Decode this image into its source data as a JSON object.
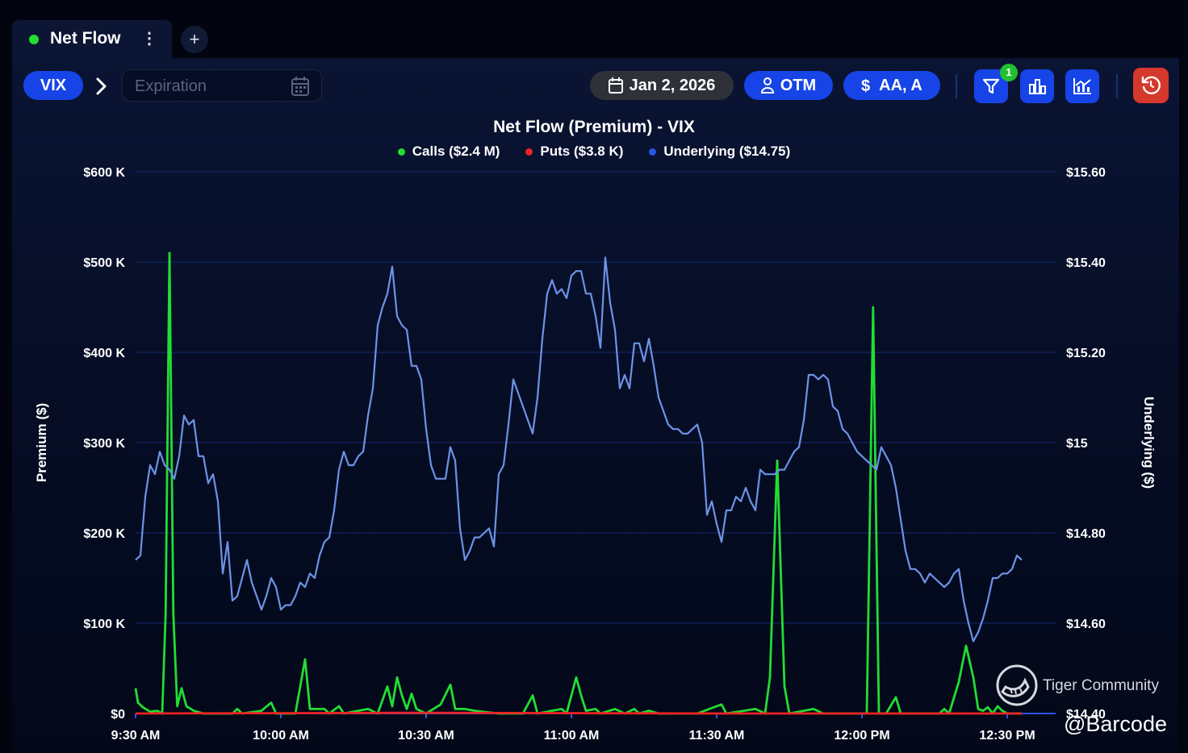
{
  "tab": {
    "label": "Net Flow",
    "menu_glyph": "⋮",
    "add_glyph": "+"
  },
  "toolbar": {
    "ticker": "VIX",
    "expiration_placeholder": "Expiration",
    "date": "Jan 2, 2026",
    "moneyness": "OTM",
    "size_filter": "AA, A",
    "filter_badge": "1",
    "icons": [
      "chevron-right-icon",
      "calendar-icon",
      "person-icon",
      "dollar-icon",
      "filter-icon",
      "bar-chart-icon",
      "line-chart-icon",
      "reset-icon"
    ],
    "colors": {
      "accent": "#1744e6",
      "reset": "#d4392c",
      "badge": "#22c02e",
      "date_pill": "#2e3138"
    }
  },
  "watermark": {
    "text": "Tiger Community",
    "handle": "@Barcode"
  },
  "chart_data": {
    "type": "line",
    "title": "Net Flow (Premium) - VIX",
    "legend": [
      "Calls ($2.4 M)",
      "Puts ($3.8 K)",
      "Underlying ($14.75)"
    ],
    "legend_placement": "top-center",
    "grid": true,
    "xlabel": "",
    "ylabel": "Premium ($)",
    "y2label": "Underlying ($)",
    "x_ticks": [
      "9:30 AM",
      "10:00 AM",
      "10:30 AM",
      "11:00 AM",
      "11:30 AM",
      "12:00 PM",
      "12:30 PM"
    ],
    "x_range_minutes": [
      0,
      190
    ],
    "ylim": [
      0,
      600000
    ],
    "y_tick_labels": [
      "$0",
      "$100 K",
      "$200 K",
      "$300 K",
      "$400 K",
      "$500 K",
      "$600 K"
    ],
    "y2lim": [
      14.4,
      15.6
    ],
    "y2_tick_labels": [
      "$14.40",
      "$14.60",
      "$14.80",
      "$15",
      "$15.20",
      "$15.40",
      "$15.60"
    ],
    "series": [
      {
        "name": "Calls",
        "color": "#22dd33",
        "axis": "left",
        "points": [
          [
            0,
            28000
          ],
          [
            0.5,
            12000
          ],
          [
            1.5,
            7000
          ],
          [
            3,
            2000
          ],
          [
            4.5,
            3000
          ],
          [
            5.5,
            0
          ],
          [
            6.2,
            110000
          ],
          [
            7,
            510000
          ],
          [
            7.8,
            110000
          ],
          [
            8.6,
            8000
          ],
          [
            9.5,
            28000
          ],
          [
            10.5,
            8000
          ],
          [
            12,
            3000
          ],
          [
            14,
            0
          ],
          [
            20,
            0
          ],
          [
            21,
            5000
          ],
          [
            22,
            0
          ],
          [
            26,
            3000
          ],
          [
            28,
            12000
          ],
          [
            29,
            0
          ],
          [
            33,
            0
          ],
          [
            35,
            60000
          ],
          [
            36,
            5000
          ],
          [
            39,
            5000
          ],
          [
            40,
            0
          ],
          [
            42,
            8000
          ],
          [
            43,
            0
          ],
          [
            48,
            5000
          ],
          [
            50,
            0
          ],
          [
            52,
            30000
          ],
          [
            53,
            8000
          ],
          [
            54,
            40000
          ],
          [
            55,
            20000
          ],
          [
            56,
            5000
          ],
          [
            57,
            22000
          ],
          [
            58,
            5000
          ],
          [
            60,
            0
          ],
          [
            63,
            10000
          ],
          [
            65,
            32000
          ],
          [
            66,
            5000
          ],
          [
            68,
            5000
          ],
          [
            70,
            3000
          ],
          [
            75,
            0
          ],
          [
            80,
            0
          ],
          [
            82,
            20000
          ],
          [
            83,
            0
          ],
          [
            88,
            5000
          ],
          [
            89,
            0
          ],
          [
            91,
            40000
          ],
          [
            92,
            20000
          ],
          [
            93,
            3000
          ],
          [
            95,
            5000
          ],
          [
            96,
            0
          ],
          [
            99,
            5000
          ],
          [
            101,
            0
          ],
          [
            103,
            5000
          ],
          [
            104,
            0
          ],
          [
            106,
            3000
          ],
          [
            108,
            0
          ],
          [
            114,
            0
          ],
          [
            116,
            0
          ],
          [
            121,
            10000
          ],
          [
            122,
            0
          ],
          [
            128,
            5000
          ],
          [
            130,
            0
          ],
          [
            131,
            40000
          ],
          [
            132.5,
            280000
          ],
          [
            134,
            30000
          ],
          [
            135,
            0
          ],
          [
            140,
            5000
          ],
          [
            142,
            0
          ],
          [
            150,
            0
          ],
          [
            151,
            0
          ],
          [
            152.3,
            450000
          ],
          [
            153.5,
            0
          ],
          [
            155,
            0
          ],
          [
            157,
            18000
          ],
          [
            158,
            0
          ],
          [
            165,
            0
          ],
          [
            166,
            0
          ],
          [
            167,
            5000
          ],
          [
            168,
            0
          ],
          [
            170,
            35000
          ],
          [
            171.5,
            75000
          ],
          [
            173,
            40000
          ],
          [
            174,
            5000
          ],
          [
            175,
            3000
          ],
          [
            176,
            7000
          ],
          [
            177,
            0
          ],
          [
            178,
            8000
          ],
          [
            179,
            3000
          ],
          [
            180,
            0
          ],
          [
            183,
            0
          ]
        ]
      },
      {
        "name": "Puts",
        "color": "#ee2222",
        "axis": "left",
        "points": [
          [
            0,
            0
          ],
          [
            60,
            800
          ],
          [
            120,
            0
          ],
          [
            183,
            0
          ]
        ]
      },
      {
        "name": "Underlying",
        "color": "#6d93e6",
        "axis": "right",
        "points": [
          [
            0,
            14.74
          ],
          [
            1,
            14.75
          ],
          [
            2,
            14.88
          ],
          [
            3,
            14.95
          ],
          [
            4,
            14.93
          ],
          [
            5,
            14.98
          ],
          [
            6,
            14.95
          ],
          [
            7,
            14.94
          ],
          [
            8,
            14.92
          ],
          [
            9,
            14.97
          ],
          [
            10,
            15.06
          ],
          [
            11,
            15.04
          ],
          [
            12,
            15.05
          ],
          [
            13,
            14.97
          ],
          [
            14,
            14.97
          ],
          [
            15,
            14.91
          ],
          [
            16,
            14.93
          ],
          [
            17,
            14.87
          ],
          [
            18,
            14.71
          ],
          [
            19,
            14.78
          ],
          [
            20,
            14.65
          ],
          [
            21,
            14.66
          ],
          [
            22,
            14.7
          ],
          [
            23,
            14.74
          ],
          [
            24,
            14.69
          ],
          [
            25,
            14.66
          ],
          [
            26,
            14.63
          ],
          [
            27,
            14.66
          ],
          [
            28,
            14.7
          ],
          [
            29,
            14.68
          ],
          [
            30,
            14.63
          ],
          [
            31,
            14.64
          ],
          [
            32,
            14.64
          ],
          [
            33,
            14.66
          ],
          [
            34,
            14.69
          ],
          [
            35,
            14.68
          ],
          [
            36,
            14.71
          ],
          [
            37,
            14.7
          ],
          [
            38,
            14.75
          ],
          [
            39,
            14.78
          ],
          [
            40,
            14.79
          ],
          [
            41,
            14.85
          ],
          [
            42,
            14.94
          ],
          [
            43,
            14.98
          ],
          [
            44,
            14.95
          ],
          [
            45,
            14.95
          ],
          [
            46,
            14.97
          ],
          [
            47,
            14.98
          ],
          [
            48,
            15.06
          ],
          [
            49,
            15.12
          ],
          [
            50,
            15.26
          ],
          [
            51,
            15.3
          ],
          [
            52,
            15.33
          ],
          [
            53,
            15.39
          ],
          [
            54,
            15.28
          ],
          [
            55,
            15.26
          ],
          [
            56,
            15.25
          ],
          [
            57,
            15.17
          ],
          [
            58,
            15.17
          ],
          [
            59,
            15.14
          ],
          [
            60,
            15.03
          ],
          [
            61,
            14.95
          ],
          [
            62,
            14.92
          ],
          [
            63,
            14.92
          ],
          [
            64,
            14.92
          ],
          [
            65,
            14.99
          ],
          [
            66,
            14.96
          ],
          [
            67,
            14.81
          ],
          [
            68,
            14.74
          ],
          [
            69,
            14.76
          ],
          [
            70,
            14.79
          ],
          [
            71,
            14.79
          ],
          [
            72,
            14.8
          ],
          [
            73,
            14.81
          ],
          [
            74,
            14.77
          ],
          [
            75,
            14.93
          ],
          [
            76,
            14.95
          ],
          [
            77,
            15.04
          ],
          [
            78,
            15.14
          ],
          [
            79,
            15.11
          ],
          [
            80,
            15.08
          ],
          [
            81,
            15.05
          ],
          [
            82,
            15.02
          ],
          [
            83,
            15.1
          ],
          [
            84,
            15.23
          ],
          [
            85,
            15.33
          ],
          [
            86,
            15.36
          ],
          [
            87,
            15.33
          ],
          [
            88,
            15.34
          ],
          [
            89,
            15.32
          ],
          [
            90,
            15.37
          ],
          [
            91,
            15.38
          ],
          [
            92,
            15.38
          ],
          [
            93,
            15.33
          ],
          [
            94,
            15.33
          ],
          [
            95,
            15.28
          ],
          [
            96,
            15.21
          ],
          [
            97,
            15.41
          ],
          [
            98,
            15.31
          ],
          [
            99,
            15.25
          ],
          [
            100,
            15.12
          ],
          [
            101,
            15.15
          ],
          [
            102,
            15.12
          ],
          [
            103,
            15.22
          ],
          [
            104,
            15.22
          ],
          [
            105,
            15.18
          ],
          [
            106,
            15.23
          ],
          [
            107,
            15.17
          ],
          [
            108,
            15.1
          ],
          [
            109,
            15.07
          ],
          [
            110,
            15.04
          ],
          [
            111,
            15.03
          ],
          [
            112,
            15.03
          ],
          [
            113,
            15.02
          ],
          [
            114,
            15.02
          ],
          [
            115,
            15.03
          ],
          [
            116,
            15.04
          ],
          [
            117,
            15.0
          ],
          [
            118,
            14.84
          ],
          [
            119,
            14.87
          ],
          [
            120,
            14.82
          ],
          [
            121,
            14.78
          ],
          [
            122,
            14.85
          ],
          [
            123,
            14.85
          ],
          [
            124,
            14.88
          ],
          [
            125,
            14.87
          ],
          [
            126,
            14.9
          ],
          [
            127,
            14.87
          ],
          [
            128,
            14.85
          ],
          [
            129,
            14.94
          ],
          [
            130,
            14.93
          ],
          [
            131,
            14.93
          ],
          [
            132,
            14.93
          ],
          [
            133,
            14.94
          ],
          [
            134,
            14.94
          ],
          [
            135,
            14.96
          ],
          [
            136,
            14.98
          ],
          [
            137,
            14.99
          ],
          [
            138,
            15.05
          ],
          [
            139,
            15.15
          ],
          [
            140,
            15.15
          ],
          [
            141,
            15.14
          ],
          [
            142,
            15.15
          ],
          [
            143,
            15.14
          ],
          [
            144,
            15.08
          ],
          [
            145,
            15.07
          ],
          [
            146,
            15.03
          ],
          [
            147,
            15.02
          ],
          [
            148,
            15.0
          ],
          [
            149,
            14.98
          ],
          [
            150,
            14.97
          ],
          [
            151,
            14.96
          ],
          [
            152,
            14.95
          ],
          [
            153,
            14.94
          ],
          [
            154,
            14.99
          ],
          [
            155,
            14.97
          ],
          [
            156,
            14.95
          ],
          [
            157,
            14.9
          ],
          [
            158,
            14.83
          ],
          [
            159,
            14.76
          ],
          [
            160,
            14.72
          ],
          [
            161,
            14.72
          ],
          [
            162,
            14.71
          ],
          [
            163,
            14.69
          ],
          [
            164,
            14.71
          ],
          [
            165,
            14.7
          ],
          [
            166,
            14.69
          ],
          [
            167,
            14.68
          ],
          [
            168,
            14.69
          ],
          [
            169,
            14.71
          ],
          [
            170,
            14.72
          ],
          [
            171,
            14.65
          ],
          [
            172,
            14.6
          ],
          [
            173,
            14.56
          ],
          [
            174,
            14.58
          ],
          [
            175,
            14.61
          ],
          [
            176,
            14.65
          ],
          [
            177,
            14.7
          ],
          [
            178,
            14.7
          ],
          [
            179,
            14.71
          ],
          [
            180,
            14.71
          ],
          [
            181,
            14.72
          ],
          [
            182,
            14.75
          ],
          [
            183,
            14.74
          ]
        ]
      }
    ]
  }
}
